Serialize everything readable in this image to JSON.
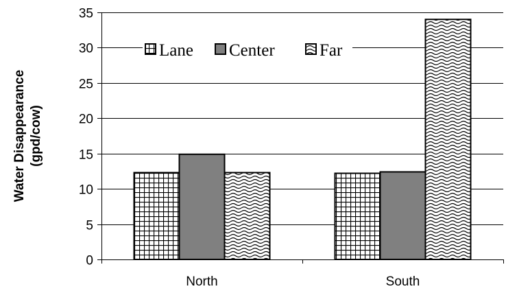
{
  "chart_data": {
    "type": "bar",
    "title": "",
    "xlabel": "",
    "ylabel_lines": [
      "Water Disappearance",
      "(gpd/cow)"
    ],
    "categories": [
      "North",
      "South"
    ],
    "series": [
      {
        "name": "Lane",
        "values": [
          12.3,
          12.2
        ],
        "pattern": "grid",
        "color": "#ffffff"
      },
      {
        "name": "Center",
        "values": [
          14.9,
          12.4
        ],
        "pattern": "solid",
        "color": "#808080"
      },
      {
        "name": "Far",
        "values": [
          12.3,
          34.0
        ],
        "pattern": "wave",
        "color": "#ffffff"
      }
    ],
    "ylim": [
      0,
      35
    ],
    "yticks": [
      0,
      5,
      10,
      15,
      20,
      25,
      30,
      35
    ],
    "grid": true,
    "legend": "top-left, inside plot"
  }
}
